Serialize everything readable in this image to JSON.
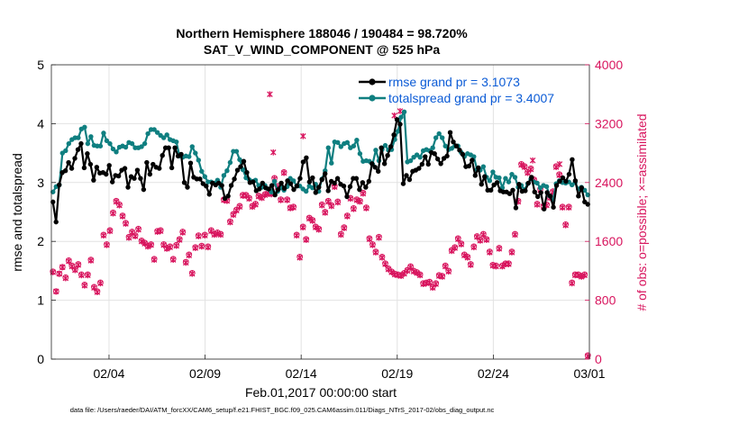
{
  "chart_data": {
    "type": "line",
    "title_line1": "Northern Hemisphere 188046 / 190484 = 98.720%",
    "title_line2": "SAT_V_WIND_COMPONENT @ 525 hPa",
    "xlabel": "Feb.01,2017 00:00:00 start",
    "ylabel_left": "rmse and totalspread",
    "ylabel_right": "# of obs: o=possible; ×=assimilated",
    "footnote": "data file: /Users/raeder/DAI/ATM_forcXX/CAM6_setup/f.e21.FHIST_BGC.f09_025.CAM6assim.011/Diags_NTrS_2017-02/obs_diag_output.nc",
    "xlim": [
      0.5,
      28.5
    ],
    "ylim_left": [
      0,
      5
    ],
    "ylim_right": [
      0,
      4000
    ],
    "x_ticks": [
      {
        "x": 3.5,
        "label": "02/04"
      },
      {
        "x": 8.5,
        "label": "02/09"
      },
      {
        "x": 13.5,
        "label": "02/14"
      },
      {
        "x": 18.5,
        "label": "02/19"
      },
      {
        "x": 23.5,
        "label": "02/24"
      },
      {
        "x": 28.5,
        "label": "03/01"
      }
    ],
    "y_ticks_left": [
      "0",
      "1",
      "2",
      "3",
      "4",
      "5"
    ],
    "y_ticks_right": [
      "0",
      "800",
      "1600",
      "2400",
      "3200",
      "4000"
    ],
    "colors": {
      "rmse": "#000000",
      "spread": "#0f7f80",
      "obs": "#d8155e",
      "legend_text": "#0b5bd6"
    },
    "series": [
      {
        "name": "rmse",
        "legend": "rmse grand pr = 3.1073",
        "values": [
          2.67,
          2.33,
          2.96,
          3.17,
          3.2,
          3.34,
          3.24,
          3.41,
          3.56,
          3.66,
          3.25,
          3.49,
          3.31,
          3.04,
          3.26,
          3.16,
          3.17,
          3.14,
          3.29,
          3.01,
          3.12,
          3.11,
          3.21,
          3.24,
          2.92,
          3.1,
          3.07,
          3.21,
          3.07,
          2.88,
          3.34,
          3.14,
          3.31,
          3.26,
          3.24,
          3.46,
          3.59,
          3.59,
          3.25,
          3.59,
          3.45,
          3.48,
          3.0,
          2.92,
          3.33,
          3.09,
          3.06,
          3.06,
          2.98,
          2.94,
          2.8,
          2.99,
          2.96,
          2.99,
          2.95,
          2.73,
          2.77,
          2.95,
          3.06,
          3.21,
          3.27,
          3.36,
          3.17,
          3.0,
          3.01,
          2.86,
          2.89,
          2.99,
          2.91,
          2.89,
          2.95,
          2.79,
          2.88,
          2.99,
          2.9,
          3.03,
          2.98,
          2.88,
          2.94,
          3.07,
          3.35,
          3.42,
          3.01,
          3.08,
          2.83,
          2.92,
          3.05,
          3.15,
          2.86,
          3.02,
          2.99,
          3.07,
          2.97,
          2.94,
          2.76,
          2.93,
          3.07,
          3.07,
          2.88,
          3.0,
          2.92,
          3.02,
          3.32,
          3.26,
          3.19,
          3.59,
          3.32,
          3.46,
          3.61,
          3.81,
          4.07,
          3.99,
          2.98,
          3.12,
          3.05,
          3.19,
          3.21,
          3.24,
          3.31,
          3.44,
          3.31,
          3.51,
          3.49,
          3.4,
          3.32,
          3.41,
          3.45,
          3.85,
          3.69,
          3.62,
          3.55,
          3.48,
          3.27,
          3.28,
          3.38,
          3.12,
          3.25,
          2.97,
          3.1,
          2.87,
          2.87,
          2.96,
          3.0,
          2.86,
          2.84,
          2.84,
          2.81,
          2.87,
          2.57,
          2.97,
          2.85,
          2.86,
          2.99,
          3.09,
          2.84,
          2.76,
          2.83,
          2.55,
          2.83,
          2.77,
          2.58,
          2.95,
          3.02,
          3.08,
          3.02,
          3.14,
          3.39,
          3.03,
          2.77,
          2.91,
          2.67,
          2.63
        ]
      },
      {
        "name": "totalspread",
        "legend": "totalspread grand pr = 3.4007",
        "values": [
          2.84,
          2.93,
          2.96,
          3.5,
          3.54,
          3.66,
          3.73,
          3.76,
          3.76,
          3.91,
          3.94,
          3.66,
          3.78,
          3.63,
          3.62,
          3.62,
          3.84,
          3.71,
          3.66,
          3.57,
          3.52,
          3.6,
          3.62,
          3.6,
          3.68,
          3.66,
          3.59,
          3.59,
          3.61,
          3.66,
          3.83,
          3.9,
          3.9,
          3.85,
          3.8,
          3.76,
          3.81,
          3.73,
          3.71,
          3.69,
          3.45,
          3.43,
          3.45,
          3.44,
          3.61,
          3.5,
          3.38,
          3.19,
          3.1,
          3.01,
          3.01,
          2.99,
          3.04,
          2.92,
          3.12,
          3.2,
          3.34,
          3.53,
          3.53,
          3.39,
          3.22,
          3.08,
          3.05,
          3.02,
          3.04,
          2.95,
          2.92,
          2.95,
          2.89,
          2.84,
          3.02,
          2.85,
          2.91,
          2.87,
          2.93,
          3.07,
          3.03,
          2.94,
          2.94,
          2.89,
          2.85,
          2.94,
          2.91,
          2.97,
          2.85,
          3.06,
          3.2,
          3.59,
          3.33,
          3.69,
          3.68,
          3.61,
          3.66,
          3.68,
          3.59,
          3.62,
          3.72,
          3.49,
          3.36,
          3.37,
          3.36,
          3.31,
          3.55,
          3.37,
          3.56,
          3.63,
          3.55,
          3.56,
          3.73,
          3.87,
          4.11,
          4.2,
          3.35,
          3.37,
          3.43,
          3.47,
          3.43,
          3.54,
          3.56,
          3.54,
          3.59,
          3.76,
          3.83,
          3.76,
          3.62,
          3.56,
          3.58,
          3.62,
          3.62,
          3.51,
          3.44,
          3.49,
          3.47,
          3.44,
          3.22,
          3.21,
          3.27,
          3.09,
          3.03,
          3.18,
          3.09,
          3.08,
          2.91,
          3.07,
          3.01,
          3.14,
          3.09,
          2.92,
          2.95,
          2.88,
          2.98,
          3.06,
          3.01,
          2.99,
          2.91,
          2.95,
          2.93,
          2.77,
          2.69,
          2.98,
          3.03,
          3.0,
          2.99,
          3.01,
          2.96,
          3.0,
          2.89,
          2.92,
          2.87,
          2.79
        ]
      },
      {
        "name": "obs_possible",
        "values": [
          1190,
          920,
          1160,
          1250,
          1110,
          1340,
          1270,
          1220,
          1290,
          1150,
          1010,
          1150,
          1350,
          980,
          920,
          1040,
          1690,
          1560,
          1750,
          1990,
          2150,
          2100,
          1950,
          1850,
          1660,
          1730,
          1680,
          1770,
          1610,
          1580,
          1540,
          1560,
          1360,
          1740,
          1750,
          1560,
          1510,
          1530,
          1360,
          1550,
          1630,
          1730,
          1320,
          1420,
          1170,
          1520,
          1680,
          1540,
          1690,
          1530,
          1750,
          1700,
          1720,
          1700,
          2170,
          2160,
          1870,
          1970,
          2030,
          2080,
          2230,
          2230,
          2190,
          2080,
          2110,
          2220,
          2200,
          2240,
          2260,
          2250,
          2460,
          2350,
          2170,
          2540,
          2170,
          2060,
          2070,
          1690,
          1390,
          1800,
          1630,
          1920,
          1890,
          1800,
          1770,
          2100,
          2000,
          2150,
          2090,
          2350,
          2140,
          1700,
          1790,
          1950,
          2190,
          2050,
          2170,
          2150,
          2260,
          2060,
          1640,
          1560,
          1460,
          1660,
          1390,
          1300,
          1230,
          1190,
          1160,
          1150,
          1140,
          1170,
          1210,
          1260,
          1200,
          1180,
          1150,
          1030,
          1040,
          1050,
          980,
          1030,
          1140,
          1130,
          1270,
          1200,
          1480,
          1520,
          1640,
          1570,
          1420,
          1390,
          1290,
          1530,
          1670,
          1620,
          1700,
          1630,
          1460,
          1280,
          1270,
          1510,
          1270,
          1300,
          1300,
          1460,
          1700,
          2150,
          2650,
          2620,
          2540,
          2590,
          2440,
          2110,
          2310,
          2080,
          2100,
          2200,
          2280,
          2620,
          2510,
          2070,
          1830,
          2070,
          1040,
          1150,
          1150,
          1130,
          1150,
          50
        ]
      },
      {
        "name": "obs_assimilated",
        "values": [
          1180,
          920,
          1160,
          1250,
          1100,
          1330,
          1260,
          1210,
          1280,
          1140,
          1000,
          1140,
          1340,
          970,
          910,
          1030,
          1680,
          1550,
          1740,
          1980,
          2140,
          2090,
          1940,
          1840,
          1650,
          1720,
          1670,
          1760,
          1600,
          1570,
          1530,
          1550,
          1350,
          1730,
          1740,
          1550,
          1500,
          1520,
          1350,
          1540,
          1620,
          1720,
          1310,
          1410,
          1160,
          1510,
          1670,
          1530,
          1680,
          1520,
          1740,
          1690,
          1710,
          1690,
          2160,
          2150,
          1860,
          1960,
          2020,
          2070,
          2220,
          2220,
          2180,
          2070,
          2100,
          2210,
          2190,
          2230,
          2250,
          2240,
          2450,
          2340,
          2160,
          2530,
          2160,
          2050,
          2060,
          1680,
          1380,
          1790,
          1620,
          1910,
          1880,
          1790,
          1760,
          2090,
          1990,
          2140,
          2080,
          2340,
          2130,
          1690,
          1780,
          1940,
          2180,
          2040,
          2160,
          2140,
          2250,
          2050,
          1630,
          1550,
          1450,
          1650,
          1380,
          1290,
          1220,
          1180,
          1150,
          1140,
          1130,
          1160,
          1200,
          1250,
          1190,
          1170,
          1140,
          1020,
          1030,
          1040,
          970,
          1020,
          1130,
          1120,
          1260,
          1190,
          1470,
          1510,
          1630,
          1560,
          1410,
          1380,
          1280,
          1520,
          1660,
          1610,
          1690,
          1620,
          1450,
          1270,
          1260,
          1500,
          1260,
          1290,
          1290,
          1450,
          1690,
          2140,
          2640,
          2610,
          2530,
          2580,
          2430,
          2100,
          2300,
          2070,
          2090,
          2190,
          2270,
          2610,
          2500,
          2060,
          1820,
          2060,
          1030,
          1140,
          1140,
          1120,
          1140,
          40
        ]
      }
    ],
    "outliers_assimilated": [
      {
        "x": 11.87,
        "y": 3600
      },
      {
        "x": 12.05,
        "y": 2810
      },
      {
        "x": 13.6,
        "y": 3030
      },
      {
        "x": 18.35,
        "y": 3310
      },
      {
        "x": 18.65,
        "y": 3370
      },
      {
        "x": 25.55,
        "y": 2700
      },
      {
        "x": 26.95,
        "y": 2650
      }
    ]
  }
}
